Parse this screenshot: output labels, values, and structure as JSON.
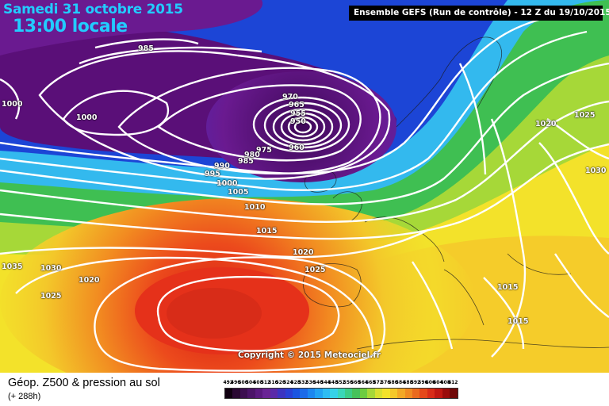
{
  "header": {
    "date": "Samedi 31 octobre 2015",
    "time": "13:00 locale",
    "run_info": "Ensemble GEFS  (Run de contrôle)  -  12 Z du 19/10/2015"
  },
  "map": {
    "copyright": "Copyright © 2015 Meteociel.fr",
    "colors": {
      "violet": "#5a0f78",
      "blue": "#1c45d6",
      "cyan": "#33b9ee",
      "green": "#3fbf52",
      "yellow": "#f3e22a",
      "orange": "#f28d21",
      "red": "#e5311a",
      "contours": "#ffffff"
    },
    "isobar_labels": [
      {
        "text": "985"
      },
      {
        "text": "1000"
      },
      {
        "text": "1000"
      },
      {
        "text": "970"
      },
      {
        "text": "965"
      },
      {
        "text": "955"
      },
      {
        "text": "950"
      },
      {
        "text": "975"
      },
      {
        "text": "960"
      },
      {
        "text": "980"
      },
      {
        "text": "990"
      },
      {
        "text": "985"
      },
      {
        "text": "995"
      },
      {
        "text": "1000"
      },
      {
        "text": "1005"
      },
      {
        "text": "1010"
      },
      {
        "text": "1015"
      },
      {
        "text": "1020"
      },
      {
        "text": "1025"
      },
      {
        "text": "1035"
      },
      {
        "text": "1030"
      },
      {
        "text": "1020"
      },
      {
        "text": "1025"
      },
      {
        "text": "1020"
      },
      {
        "text": "1025"
      },
      {
        "text": "1030"
      },
      {
        "text": "1015"
      },
      {
        "text": "1015"
      }
    ]
  },
  "legend": {
    "title": "Géop. Z500 & pression au sol",
    "subtitle": "(+ 288h)",
    "scale_values": [
      "492",
      "496",
      "500",
      "504",
      "508",
      "512",
      "516",
      "520",
      "524",
      "528",
      "532",
      "536",
      "540",
      "544",
      "548",
      "552",
      "556",
      "560",
      "564",
      "568",
      "572",
      "576",
      "580",
      "584",
      "588",
      "592",
      "596",
      "600",
      "604",
      "608",
      "612"
    ],
    "scale_colors": [
      "#100010",
      "#2a0832",
      "#3c0f50",
      "#4b1468",
      "#5a1a7f",
      "#6a2495",
      "#5a2aa8",
      "#3c34c0",
      "#2a40d4",
      "#1c55e0",
      "#1c6ae8",
      "#1c86ef",
      "#22a2f2",
      "#2ebcf2",
      "#36d2e8",
      "#3ad6b8",
      "#3ccc86",
      "#46c25a",
      "#6ccc40",
      "#a6d838",
      "#d8e030",
      "#f3e22a",
      "#f4c82a",
      "#f2a826",
      "#ef8a22",
      "#ea6a1e",
      "#e4481a",
      "#d82c18",
      "#c01812",
      "#9a0c0c",
      "#700808"
    ]
  }
}
